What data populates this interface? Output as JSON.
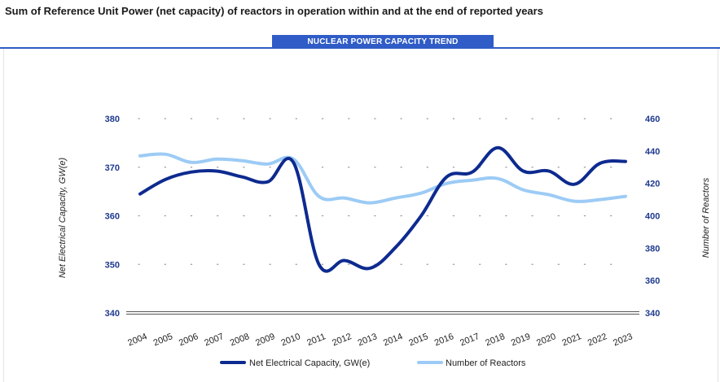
{
  "page": {
    "title": "Sum of Reference Unit Power (net capacity) of reactors in operation within and at the end of reported years",
    "tab_label": "NUCLEAR POWER CAPACITY TREND"
  },
  "colors": {
    "accent": "#2f5cc6",
    "series_capacity": "#0d2a8f",
    "series_reactors": "#9ccbf5",
    "tick_text": "#1f3a8f"
  },
  "chart_data": {
    "type": "line",
    "title": "NUCLEAR POWER CAPACITY TREND",
    "categories": [
      "2004",
      "2005",
      "2006",
      "2007",
      "2008",
      "2009",
      "2010",
      "2011",
      "2012",
      "2013",
      "2014",
      "2015",
      "2016",
      "2017",
      "2018",
      "2019",
      "2020",
      "2021",
      "2022",
      "2023"
    ],
    "series": [
      {
        "name": "Net Electrical Capacity, GW(e)",
        "axis": "left",
        "values": [
          364.5,
          367.5,
          369,
          369.2,
          368,
          367,
          371,
          350,
          350.8,
          349.2,
          353.5,
          360,
          368,
          369,
          374,
          369.2,
          369.2,
          366.5,
          370.8,
          371.2
        ]
      },
      {
        "name": "Number of Reactors",
        "axis": "right",
        "values": [
          437,
          438,
          433,
          435,
          434,
          432,
          435,
          412,
          411,
          408,
          411,
          414,
          420,
          422,
          423,
          416,
          413,
          409,
          410,
          412
        ]
      }
    ],
    "ylabel_left": "Net Electrical Capacity, GW(e)",
    "ylabel_right": "Number of Reactors",
    "ylim_left": [
      340,
      380
    ],
    "ylim_right": [
      340,
      460
    ],
    "yticks_left": [
      "340",
      "350",
      "360",
      "370",
      "380"
    ],
    "yticks_right": [
      "340",
      "360",
      "380",
      "400",
      "420",
      "440",
      "460"
    ],
    "grid": "dotted",
    "legend": "bottom"
  }
}
